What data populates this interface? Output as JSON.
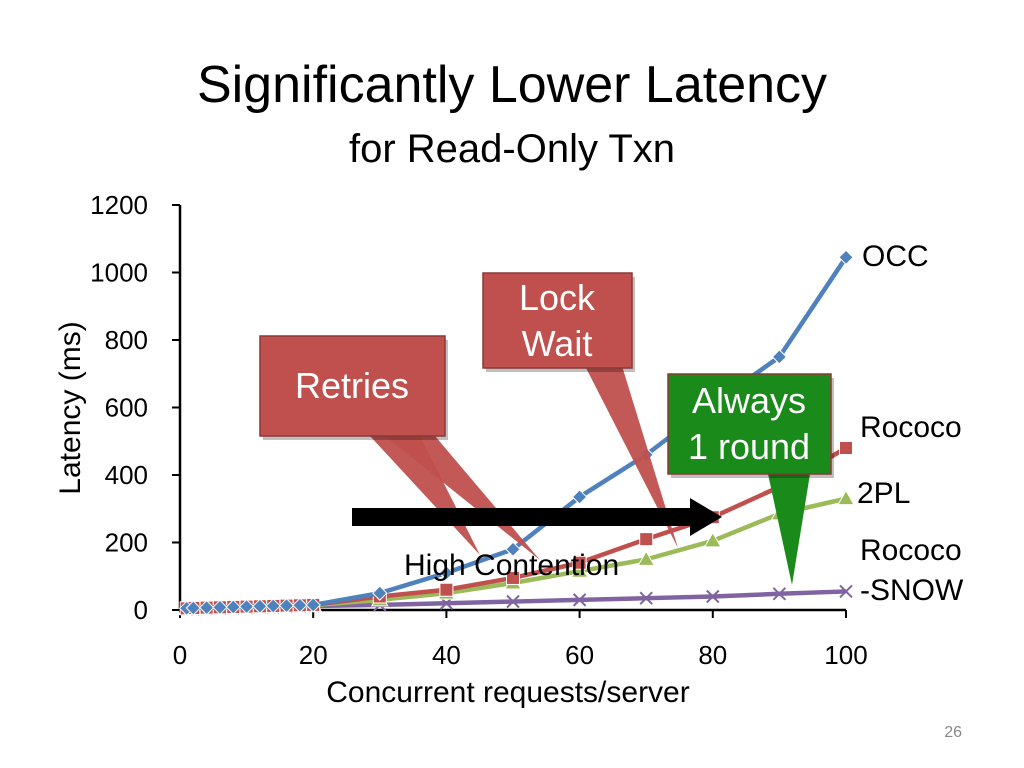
{
  "slide": {
    "title": "Significantly Lower Latency",
    "subtitle": "for Read-Only Txn",
    "page_number": "26"
  },
  "chart_data": {
    "type": "line",
    "xlabel": "Concurrent requests/server",
    "ylabel": "Latency (ms)",
    "xlim": [
      0,
      100
    ],
    "ylim": [
      0,
      1200
    ],
    "xticks": [
      0,
      20,
      40,
      60,
      80,
      100
    ],
    "yticks": [
      0,
      200,
      400,
      600,
      800,
      1000,
      1200
    ],
    "grid": false,
    "legend": "none; series labeled at line ends",
    "series": [
      {
        "name": "OCC",
        "color": "#4f81bd",
        "marker": "diamond",
        "x": [
          1,
          2,
          4,
          6,
          8,
          10,
          12,
          14,
          16,
          18,
          20,
          30,
          40,
          50,
          60,
          70,
          80,
          90,
          100
        ],
        "y": [
          5,
          6,
          7,
          8,
          9,
          10,
          11,
          12,
          13,
          14,
          15,
          50,
          110,
          180,
          335,
          460,
          610,
          750,
          1045
        ]
      },
      {
        "name": "Rococo",
        "color": "#c0504d",
        "marker": "square",
        "x": [
          1,
          2,
          4,
          6,
          8,
          10,
          12,
          14,
          16,
          18,
          20,
          30,
          40,
          50,
          60,
          70,
          80,
          90,
          100
        ],
        "y": [
          5,
          6,
          7,
          8,
          9,
          10,
          11,
          12,
          13,
          14,
          15,
          40,
          60,
          95,
          140,
          210,
          275,
          365,
          480
        ]
      },
      {
        "name": "2PL",
        "color": "#9bbb59",
        "marker": "triangle",
        "x": [
          1,
          2,
          4,
          6,
          8,
          10,
          12,
          14,
          16,
          18,
          20,
          30,
          40,
          50,
          60,
          70,
          80,
          90,
          100
        ],
        "y": [
          4,
          5,
          6,
          7,
          8,
          9,
          10,
          11,
          12,
          13,
          14,
          30,
          50,
          80,
          115,
          150,
          205,
          285,
          330
        ]
      },
      {
        "name": "Rococo\n-SNOW",
        "label_lines": [
          "Rococo",
          "-SNOW"
        ],
        "color": "#8064a2",
        "marker": "x",
        "x": [
          1,
          2,
          4,
          6,
          8,
          10,
          12,
          14,
          16,
          18,
          20,
          30,
          40,
          50,
          60,
          70,
          80,
          90,
          100
        ],
        "y": [
          2,
          3,
          4,
          5,
          6,
          7,
          8,
          9,
          10,
          11,
          12,
          15,
          20,
          25,
          30,
          35,
          40,
          48,
          55
        ]
      }
    ],
    "annotations": {
      "retries": {
        "text": "Retries",
        "color": "#c0504d"
      },
      "lock_wait": {
        "lines": [
          "Lock",
          "Wait"
        ],
        "color": "#c0504d"
      },
      "always_one_round": {
        "lines": [
          "Always",
          "1 round"
        ],
        "color": "#1a8a1a"
      },
      "high_contention": {
        "text": "High Contention",
        "arrow_color": "#000000"
      }
    }
  }
}
